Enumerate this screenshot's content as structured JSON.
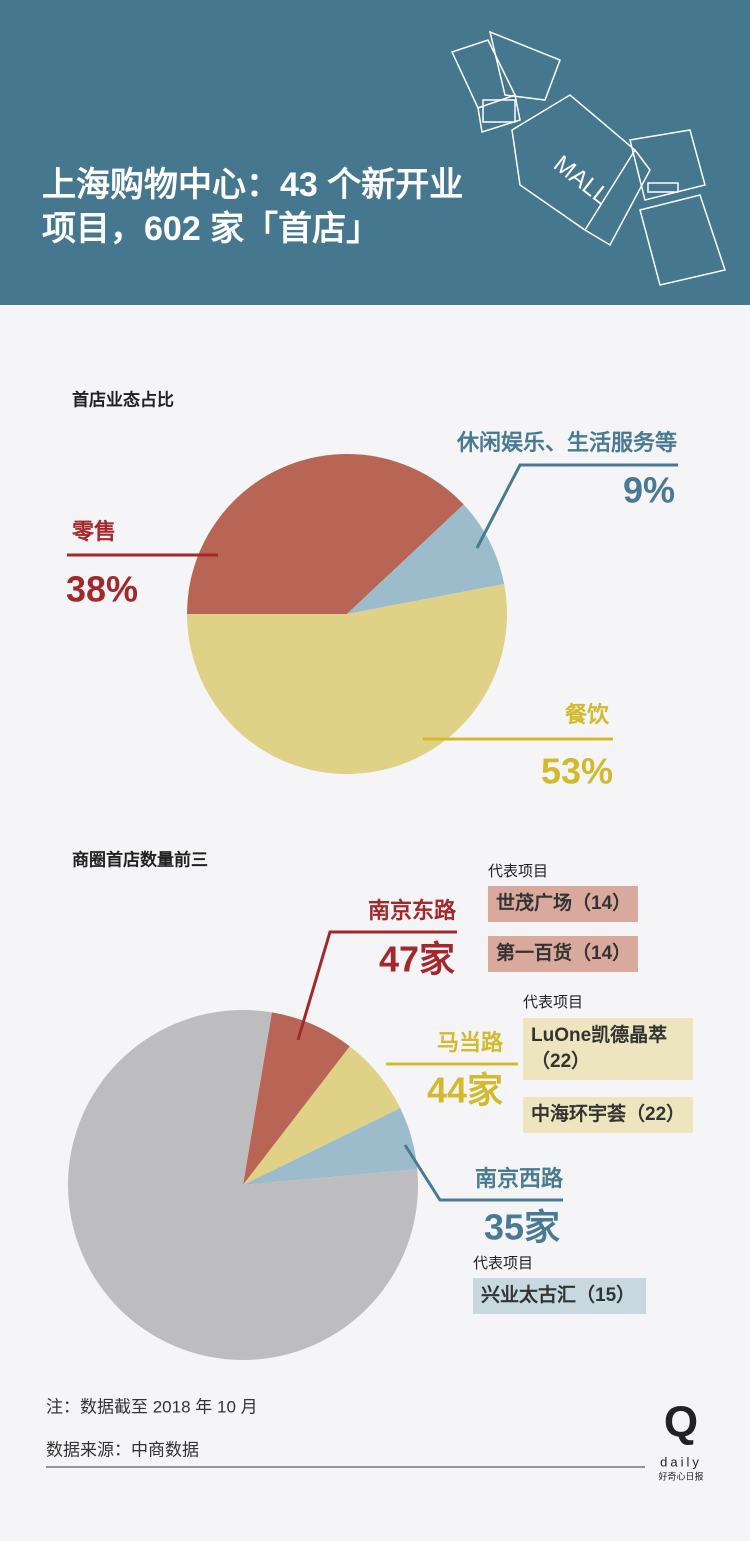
{
  "header": {
    "title_lines": [
      "上海购物中心：43 个新开业",
      "项目，602 家「首店」"
    ]
  },
  "chart_data": [
    {
      "type": "pie",
      "title": "首店业态占比",
      "categories": [
        "零售",
        "休闲娱乐、生活服务等",
        "餐饮"
      ],
      "values": [
        38,
        9,
        53
      ],
      "value_labels": [
        "38%",
        "9%",
        "53%"
      ],
      "colors": [
        "#b86555",
        "#9dbccb",
        "#dfd185"
      ],
      "label_colors": [
        "#a3282b",
        "#4a7a93",
        "#d3b92c"
      ]
    },
    {
      "type": "pie",
      "title": "商圈首店数量前三",
      "categories": [
        "南京东路",
        "马当路",
        "南京西路",
        null
      ],
      "values": [
        47,
        44,
        35,
        476
      ],
      "value_labels": [
        "47家",
        "44家",
        "35家",
        null
      ],
      "colors": [
        "#b86555",
        "#dfd185",
        "#9dbccb",
        "#bdbdc0"
      ],
      "label_colors": [
        "#a3282b",
        "#d3b92c",
        "#4a7a93",
        null
      ],
      "box_colors": [
        "#d9a99d",
        "#ede5bd",
        "#c7d8e0",
        null
      ],
      "projects_label": "代表项目",
      "projects": [
        [
          "世茂广场（14）",
          "第一百货（14）"
        ],
        [
          "LuOne凯德晶萃（22）",
          "中海环宇荟（22）"
        ],
        [
          "兴业太古汇（15）"
        ],
        null
      ]
    }
  ],
  "footer": {
    "note": "注：数据截至 2018 年 10 月",
    "source": "数据来源：中商数据",
    "logo": {
      "mark": "Q",
      "word": "daily",
      "name": "好奇心日报"
    }
  }
}
